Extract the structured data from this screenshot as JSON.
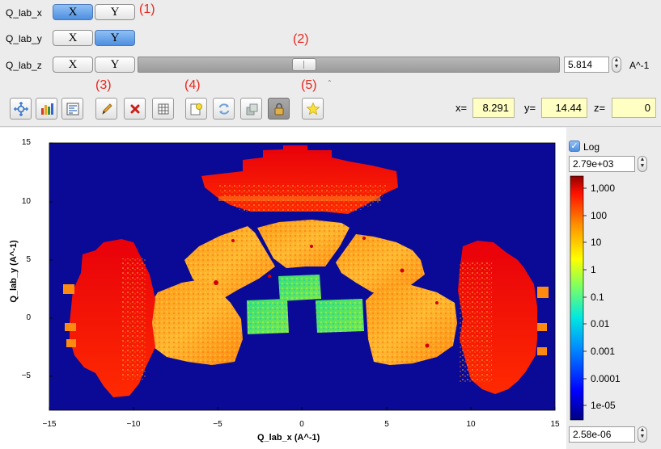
{
  "dimensions": [
    {
      "label": "Q_lab_x",
      "x": "X",
      "y": "Y",
      "x_on": true,
      "y_on": false
    },
    {
      "label": "Q_lab_y",
      "x": "X",
      "y": "Y",
      "x_on": false,
      "y_on": true
    },
    {
      "label": "Q_lab_z",
      "x": "X",
      "y": "Y",
      "x_on": false,
      "y_on": false
    }
  ],
  "annotations": [
    "(1)",
    "(2)",
    "(3)",
    "(4)",
    "(5)"
  ],
  "slice": {
    "value": "5.814",
    "unit": "A^-1"
  },
  "toolbar": [
    "zoom-fit-icon",
    "color-palette-icon",
    "line-cut-icon",
    "pencil-icon",
    "delete-icon",
    "grid-icon",
    "lightbulb-icon",
    "refresh-icon",
    "rebin-icon",
    "lock-icon",
    "star-icon"
  ],
  "coords": {
    "x_label": "x=",
    "x": "8.291",
    "y_label": "y=",
    "y": "14.44",
    "z_label": "z=",
    "z": "0"
  },
  "colorbar": {
    "log_label": "Log",
    "log_checked": true,
    "max": "2.79e+03",
    "min": "2.58e-06",
    "ticks": [
      "1,000",
      "100",
      "10",
      "1",
      "0.1",
      "0.01",
      "0.001",
      "0.0001",
      "1e-05"
    ]
  },
  "chart_data": {
    "type": "heatmap",
    "xlabel": "Q_lab_x (A^-1)",
    "ylabel": "Q_lab_y (A^-1)",
    "xlim": [
      -15,
      15
    ],
    "ylim": [
      -7.5,
      15
    ],
    "xticks": [
      "−15",
      "−10",
      "−5",
      "0",
      "5",
      "10",
      "15"
    ],
    "yticks": [
      "15",
      "10",
      "5",
      "0",
      "−5"
    ],
    "color_scale": "log",
    "vmin": 2.58e-06,
    "vmax": 2790
  }
}
